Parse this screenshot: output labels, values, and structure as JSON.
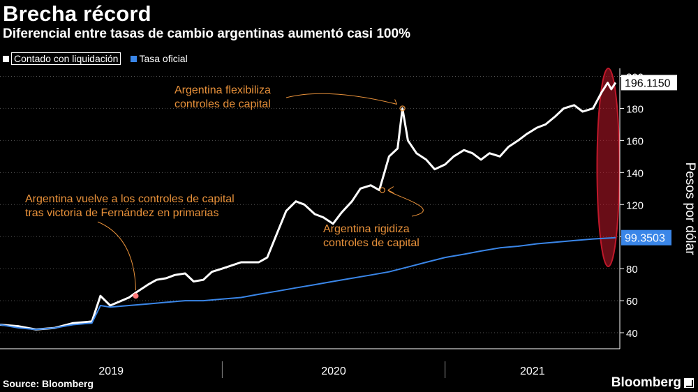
{
  "header": {
    "title": "Brecha récord",
    "subtitle": "Diferencial entre tasas de cambio argentinas aumentó casi 100%"
  },
  "footer": {
    "source": "Source: Bloomberg",
    "brand": "Bloomberg"
  },
  "colors": {
    "background": "#000000",
    "ccl": "#ffffff",
    "oficial": "#3a86e8",
    "annotation": "#e8913a",
    "highlight": "#c0182a"
  },
  "chart_data": {
    "type": "line",
    "ylabel": "Pesos por dólar",
    "ylim": [
      30,
      205
    ],
    "yticks": [
      40,
      60,
      80,
      100,
      120,
      140,
      160,
      180,
      200
    ],
    "xlim": [
      "2019-01-01",
      "2021-10-15"
    ],
    "x_tick_labels": [
      "2019",
      "2020",
      "2021"
    ],
    "legend_position": "top-left",
    "grid": true,
    "series": [
      {
        "name": "Contado con liquidación",
        "last_value_label": "196.1150",
        "points": [
          [
            "2019-01-01",
            45
          ],
          [
            "2019-02-01",
            44
          ],
          [
            "2019-03-01",
            42
          ],
          [
            "2019-04-01",
            43
          ],
          [
            "2019-05-01",
            46
          ],
          [
            "2019-06-01",
            47
          ],
          [
            "2019-06-15",
            63
          ],
          [
            "2019-07-01",
            57
          ],
          [
            "2019-08-01",
            62
          ],
          [
            "2019-08-12",
            65
          ],
          [
            "2019-09-01",
            70
          ],
          [
            "2019-09-15",
            73
          ],
          [
            "2019-10-01",
            74
          ],
          [
            "2019-10-15",
            76
          ],
          [
            "2019-11-01",
            77
          ],
          [
            "2019-11-15",
            72
          ],
          [
            "2019-12-01",
            73
          ],
          [
            "2019-12-15",
            78
          ],
          [
            "2020-01-01",
            80
          ],
          [
            "2020-02-01",
            84
          ],
          [
            "2020-03-01",
            84
          ],
          [
            "2020-03-15",
            87
          ],
          [
            "2020-04-01",
            103
          ],
          [
            "2020-04-15",
            116
          ],
          [
            "2020-05-01",
            122
          ],
          [
            "2020-05-15",
            120
          ],
          [
            "2020-06-01",
            114
          ],
          [
            "2020-06-15",
            112
          ],
          [
            "2020-07-01",
            108
          ],
          [
            "2020-07-15",
            115
          ],
          [
            "2020-08-01",
            122
          ],
          [
            "2020-08-15",
            130
          ],
          [
            "2020-09-01",
            132
          ],
          [
            "2020-09-15",
            129
          ],
          [
            "2020-10-01",
            150
          ],
          [
            "2020-10-15",
            155
          ],
          [
            "2020-10-23",
            180
          ],
          [
            "2020-11-01",
            160
          ],
          [
            "2020-11-15",
            152
          ],
          [
            "2020-12-01",
            148
          ],
          [
            "2020-12-15",
            142
          ],
          [
            "2021-01-01",
            145
          ],
          [
            "2021-01-15",
            150
          ],
          [
            "2021-02-01",
            154
          ],
          [
            "2021-02-15",
            152
          ],
          [
            "2021-03-01",
            148
          ],
          [
            "2021-03-15",
            152
          ],
          [
            "2021-04-01",
            150
          ],
          [
            "2021-04-15",
            156
          ],
          [
            "2021-05-01",
            160
          ],
          [
            "2021-05-15",
            164
          ],
          [
            "2021-06-01",
            168
          ],
          [
            "2021-06-15",
            170
          ],
          [
            "2021-07-01",
            175
          ],
          [
            "2021-07-15",
            180
          ],
          [
            "2021-08-01",
            182
          ],
          [
            "2021-08-15",
            178
          ],
          [
            "2021-09-01",
            180
          ],
          [
            "2021-09-15",
            190
          ],
          [
            "2021-09-25",
            196
          ],
          [
            "2021-10-01",
            192
          ],
          [
            "2021-10-08",
            196.115
          ]
        ]
      },
      {
        "name": "Tasa oficial",
        "last_value_label": "99.3503",
        "points": [
          [
            "2019-01-01",
            45
          ],
          [
            "2019-02-01",
            43
          ],
          [
            "2019-03-01",
            42
          ],
          [
            "2019-04-01",
            43
          ],
          [
            "2019-05-01",
            45
          ],
          [
            "2019-06-01",
            46
          ],
          [
            "2019-06-15",
            57
          ],
          [
            "2019-07-01",
            56
          ],
          [
            "2019-08-01",
            57
          ],
          [
            "2019-09-01",
            58
          ],
          [
            "2019-10-01",
            59
          ],
          [
            "2019-11-01",
            60
          ],
          [
            "2019-12-01",
            60
          ],
          [
            "2020-01-01",
            61
          ],
          [
            "2020-02-01",
            62
          ],
          [
            "2020-03-01",
            64
          ],
          [
            "2020-04-01",
            66
          ],
          [
            "2020-05-01",
            68
          ],
          [
            "2020-06-01",
            70
          ],
          [
            "2020-07-01",
            72
          ],
          [
            "2020-08-01",
            74
          ],
          [
            "2020-09-01",
            76
          ],
          [
            "2020-10-01",
            78
          ],
          [
            "2020-11-01",
            81
          ],
          [
            "2020-12-01",
            84
          ],
          [
            "2021-01-01",
            87
          ],
          [
            "2021-02-01",
            89
          ],
          [
            "2021-03-01",
            91
          ],
          [
            "2021-04-01",
            93
          ],
          [
            "2021-05-01",
            94
          ],
          [
            "2021-06-01",
            95.5
          ],
          [
            "2021-07-01",
            96.5
          ],
          [
            "2021-08-01",
            97.5
          ],
          [
            "2021-09-01",
            98.5
          ],
          [
            "2021-10-08",
            99.3503
          ]
        ]
      }
    ],
    "annotations": [
      {
        "text": [
          "Argentina vuelve a los controles de capital",
          "tras victoria de Fernández en primarias"
        ],
        "x": "2019-08-12",
        "y": 63
      },
      {
        "text": [
          "Argentina flexibiliza",
          "controles de capital"
        ],
        "x": "2020-10-23",
        "y": 180
      },
      {
        "text": [
          "Argentina rigidiza",
          "controles de capital"
        ],
        "x": "2020-09-20",
        "y": 129
      }
    ],
    "highlight_range": [
      "2021-09-10",
      "2021-10-12"
    ]
  }
}
